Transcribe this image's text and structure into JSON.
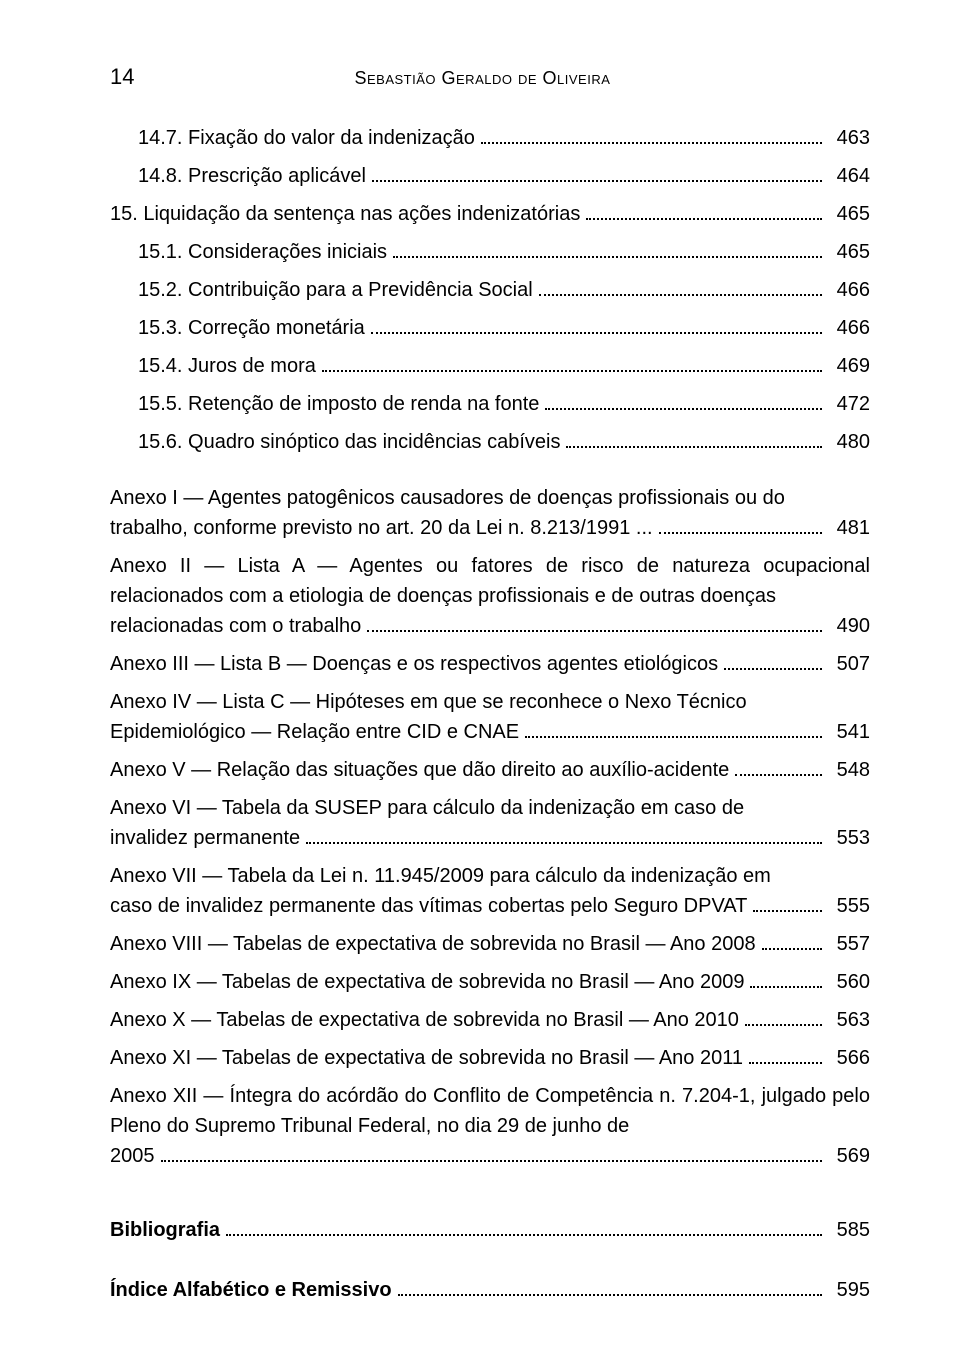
{
  "header": {
    "page_number": "14",
    "author": "Sebastião Geraldo de Oliveira"
  },
  "toc_entries": [
    {
      "label": "14.7. Fixação do valor da indenização",
      "page": "463",
      "indent": 1
    },
    {
      "label": "14.8. Prescrição aplicável",
      "page": "464",
      "indent": 1
    },
    {
      "label": "15. Liquidação da sentença nas ações indenizatórias",
      "page": "465",
      "indent": 0
    },
    {
      "label": "15.1. Considerações iniciais",
      "page": "465",
      "indent": 1
    },
    {
      "label": "15.2. Contribuição para a Previdência Social",
      "page": "466",
      "indent": 1
    },
    {
      "label": "15.3. Correção monetária",
      "page": "466",
      "indent": 1
    },
    {
      "label": "15.4. Juros de mora",
      "page": "469",
      "indent": 1
    },
    {
      "label": "15.5. Retenção de imposto de renda na fonte",
      "page": "472",
      "indent": 1
    },
    {
      "label": "15.6. Quadro sinóptico das incidências cabíveis",
      "page": "480",
      "indent": 1
    }
  ],
  "anexos": [
    {
      "pre": "Anexo I — Agentes patogênicos causadores de doenças profissionais ou do",
      "last": "trabalho, conforme previsto no art. 20 da Lei n. 8.213/1991 ...",
      "page": "481"
    },
    {
      "pre": "Anexo II — Lista A — Agentes ou fatores de risco de natureza ocupacional relacionados com a etiologia de doenças profissionais e de outras doenças",
      "last": "relacionadas com o trabalho",
      "page": "490"
    },
    {
      "pre": "",
      "last": "Anexo III — Lista B — Doenças e os respectivos agentes etiológicos",
      "page": "507"
    },
    {
      "pre": "Anexo IV — Lista C — Hipóteses em que se reconhece o Nexo Técnico",
      "last": "Epidemiológico — Relação entre CID e CNAE",
      "page": "541"
    },
    {
      "pre": "",
      "last": "Anexo V — Relação das situações que dão direito ao auxílio-acidente",
      "page": "548"
    },
    {
      "pre": "Anexo VI — Tabela da SUSEP para cálculo da indenização em caso de",
      "last": "invalidez permanente",
      "page": "553"
    },
    {
      "pre": "Anexo VII — Tabela da Lei n. 11.945/2009 para cálculo da indenização em",
      "last": "caso de invalidez permanente das vítimas cobertas pelo Seguro DPVAT",
      "page": "555"
    },
    {
      "pre": "",
      "last": "Anexo VIII — Tabelas de expectativa de sobrevida no Brasil — Ano 2008",
      "page": "557"
    },
    {
      "pre": "",
      "last": "Anexo IX — Tabelas de expectativa de sobrevida no Brasil — Ano 2009",
      "page": "560"
    },
    {
      "pre": "",
      "last": "Anexo X — Tabelas de expectativa de sobrevida no Brasil  — Ano 2010",
      "page": "563"
    },
    {
      "pre": "",
      "last": "Anexo XI — Tabelas de expectativa de sobrevida no Brasil — Ano 2011",
      "page": "566"
    },
    {
      "pre": "Anexo XII — Íntegra do acórdão do Conflito de Competência n. 7.204-1, julgado pelo Pleno do Supremo Tribunal Federal, no dia 29 de junho de",
      "last": "2005",
      "page": "569"
    }
  ],
  "footer_entries": [
    {
      "label": "Bibliografia",
      "page": "585",
      "bold": true
    },
    {
      "label": "Índice Alfabético e Remissivo",
      "page": "595",
      "bold": true
    }
  ],
  "styles": {
    "text_color": "#000000",
    "background_color": "#ffffff",
    "font_family": "Arial"
  }
}
